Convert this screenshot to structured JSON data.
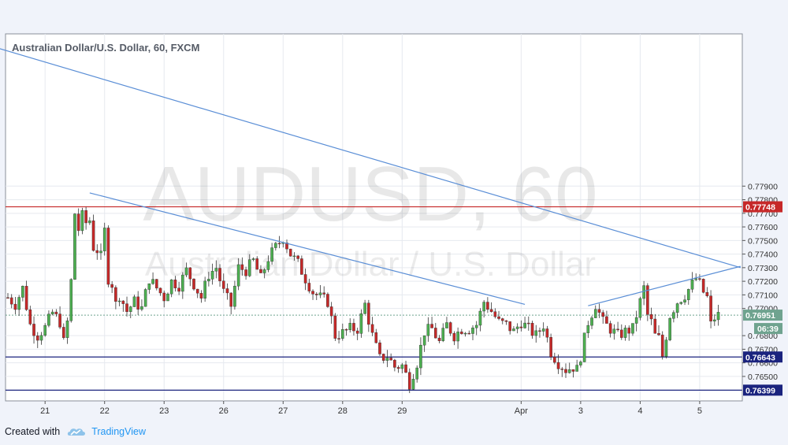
{
  "chart_data": {
    "type": "candlestick",
    "title": "Australian Dollar/U.S. Dollar, 60, FXCM",
    "watermark_symbol": "AUDUSD, 60",
    "watermark_name": "Australian Dollar / U.S. Dollar",
    "y_range": [
      0.7632,
      0.7902
    ],
    "y_ticks": [
      "0.77900",
      "0.77800",
      "0.77700",
      "0.77600",
      "0.77500",
      "0.77400",
      "0.77300",
      "0.77200",
      "0.77100",
      "0.77000",
      "0.76800",
      "0.76700",
      "0.76600",
      "0.76500"
    ],
    "x_ticks": [
      {
        "label": "21",
        "t": 10
      },
      {
        "label": "22",
        "t": 26
      },
      {
        "label": "23",
        "t": 42
      },
      {
        "label": "26",
        "t": 58
      },
      {
        "label": "27",
        "t": 74
      },
      {
        "label": "28",
        "t": 90
      },
      {
        "label": "29",
        "t": 106
      },
      {
        "label": "Apr",
        "t": 138
      },
      {
        "label": "3",
        "t": 154
      },
      {
        "label": "4",
        "t": 170
      },
      {
        "label": "5",
        "t": 186
      }
    ],
    "horizontal_levels": [
      {
        "value": 0.77748,
        "label": "0.77748",
        "color": "#c62828"
      },
      {
        "value": 0.76643,
        "label": "0.76643",
        "color": "#1a237e"
      },
      {
        "value": 0.76399,
        "label": "0.76399",
        "color": "#1a237e"
      }
    ],
    "current_price": {
      "value": 0.76951,
      "label": "0.76951",
      "countdown": "06:39",
      "color": "#6fa38f"
    },
    "trendlines": [
      {
        "from": [
          -7,
          0.7895
        ],
        "to": [
          197,
          0.773
        ]
      },
      {
        "from": [
          22,
          0.7785
        ],
        "to": [
          139,
          0.7703
        ]
      },
      {
        "from": [
          156,
          0.7702
        ],
        "to": [
          197,
          0.7731
        ]
      }
    ],
    "anchors": [
      [
        0,
        0.7708
      ],
      [
        2,
        0.7703
      ],
      [
        4,
        0.7715
      ],
      [
        6,
        0.7688
      ],
      [
        8,
        0.768
      ],
      [
        10,
        0.7686
      ],
      [
        12,
        0.7697
      ],
      [
        14,
        0.769
      ],
      [
        15,
        0.7675
      ],
      [
        16,
        0.769
      ],
      [
        17,
        0.772
      ],
      [
        18,
        0.777
      ],
      [
        19,
        0.7758
      ],
      [
        20,
        0.7768
      ],
      [
        21,
        0.7763
      ],
      [
        22,
        0.7765
      ],
      [
        23,
        0.7745
      ],
      [
        24,
        0.7743
      ],
      [
        25,
        0.7738
      ],
      [
        26,
        0.7757
      ],
      [
        27,
        0.7722
      ],
      [
        28,
        0.7718
      ],
      [
        29,
        0.7703
      ],
      [
        30,
        0.771
      ],
      [
        32,
        0.7698
      ],
      [
        34,
        0.7705
      ],
      [
        36,
        0.77
      ],
      [
        38,
        0.7722
      ],
      [
        40,
        0.7715
      ],
      [
        42,
        0.7708
      ],
      [
        44,
        0.772
      ],
      [
        46,
        0.7717
      ],
      [
        48,
        0.7728
      ],
      [
        50,
        0.7718
      ],
      [
        52,
        0.7708
      ],
      [
        54,
        0.7725
      ],
      [
        56,
        0.773
      ],
      [
        58,
        0.7712
      ],
      [
        60,
        0.7702
      ],
      [
        62,
        0.773
      ],
      [
        64,
        0.7728
      ],
      [
        66,
        0.7735
      ],
      [
        68,
        0.7722
      ],
      [
        70,
        0.7737
      ],
      [
        72,
        0.7745
      ],
      [
        74,
        0.7752
      ],
      [
        76,
        0.774
      ],
      [
        78,
        0.7733
      ],
      [
        80,
        0.7722
      ],
      [
        82,
        0.7712
      ],
      [
        84,
        0.7708
      ],
      [
        86,
        0.7705
      ],
      [
        88,
        0.768
      ],
      [
        90,
        0.7682
      ],
      [
        92,
        0.7685
      ],
      [
        94,
        0.7685
      ],
      [
        96,
        0.7703
      ],
      [
        98,
        0.768
      ],
      [
        100,
        0.7663
      ],
      [
        102,
        0.7665
      ],
      [
        104,
        0.7657
      ],
      [
        106,
        0.7658
      ],
      [
        108,
        0.7645
      ],
      [
        110,
        0.766
      ],
      [
        112,
        0.7683
      ],
      [
        114,
        0.7685
      ],
      [
        116,
        0.7675
      ],
      [
        118,
        0.7688
      ],
      [
        120,
        0.768
      ],
      [
        122,
        0.7685
      ],
      [
        124,
        0.7685
      ],
      [
        126,
        0.7688
      ],
      [
        128,
        0.7705
      ],
      [
        130,
        0.7698
      ],
      [
        132,
        0.769
      ],
      [
        134,
        0.7688
      ],
      [
        136,
        0.7683
      ],
      [
        138,
        0.769
      ],
      [
        140,
        0.7685
      ],
      [
        142,
        0.768
      ],
      [
        144,
        0.7688
      ],
      [
        146,
        0.7668
      ],
      [
        148,
        0.766
      ],
      [
        150,
        0.7655
      ],
      [
        152,
        0.7657
      ],
      [
        153,
        0.7655
      ],
      [
        154,
        0.7665
      ],
      [
        156,
        0.769
      ],
      [
        158,
        0.7703
      ],
      [
        160,
        0.769
      ],
      [
        162,
        0.7685
      ],
      [
        164,
        0.768
      ],
      [
        166,
        0.7683
      ],
      [
        168,
        0.7685
      ],
      [
        170,
        0.7705
      ],
      [
        171,
        0.7715
      ],
      [
        172,
        0.7695
      ],
      [
        173,
        0.769
      ],
      [
        174,
        0.768
      ],
      [
        175,
        0.7678
      ],
      [
        176,
        0.7665
      ],
      [
        178,
        0.7695
      ],
      [
        180,
        0.7705
      ],
      [
        182,
        0.771
      ],
      [
        184,
        0.7718
      ],
      [
        185,
        0.7722
      ],
      [
        186,
        0.7718
      ],
      [
        187,
        0.7712
      ],
      [
        188,
        0.7708
      ],
      [
        189,
        0.7688
      ],
      [
        190,
        0.7693
      ],
      [
        191,
        0.7695
      ]
    ],
    "colors": {
      "up": "#4caf50",
      "down": "#c62828",
      "line": "#5a8ed6",
      "grid": "#e6e9ef",
      "axis": "#555555"
    }
  },
  "footer": {
    "created_with": "Created with",
    "brand": "TradingView"
  }
}
